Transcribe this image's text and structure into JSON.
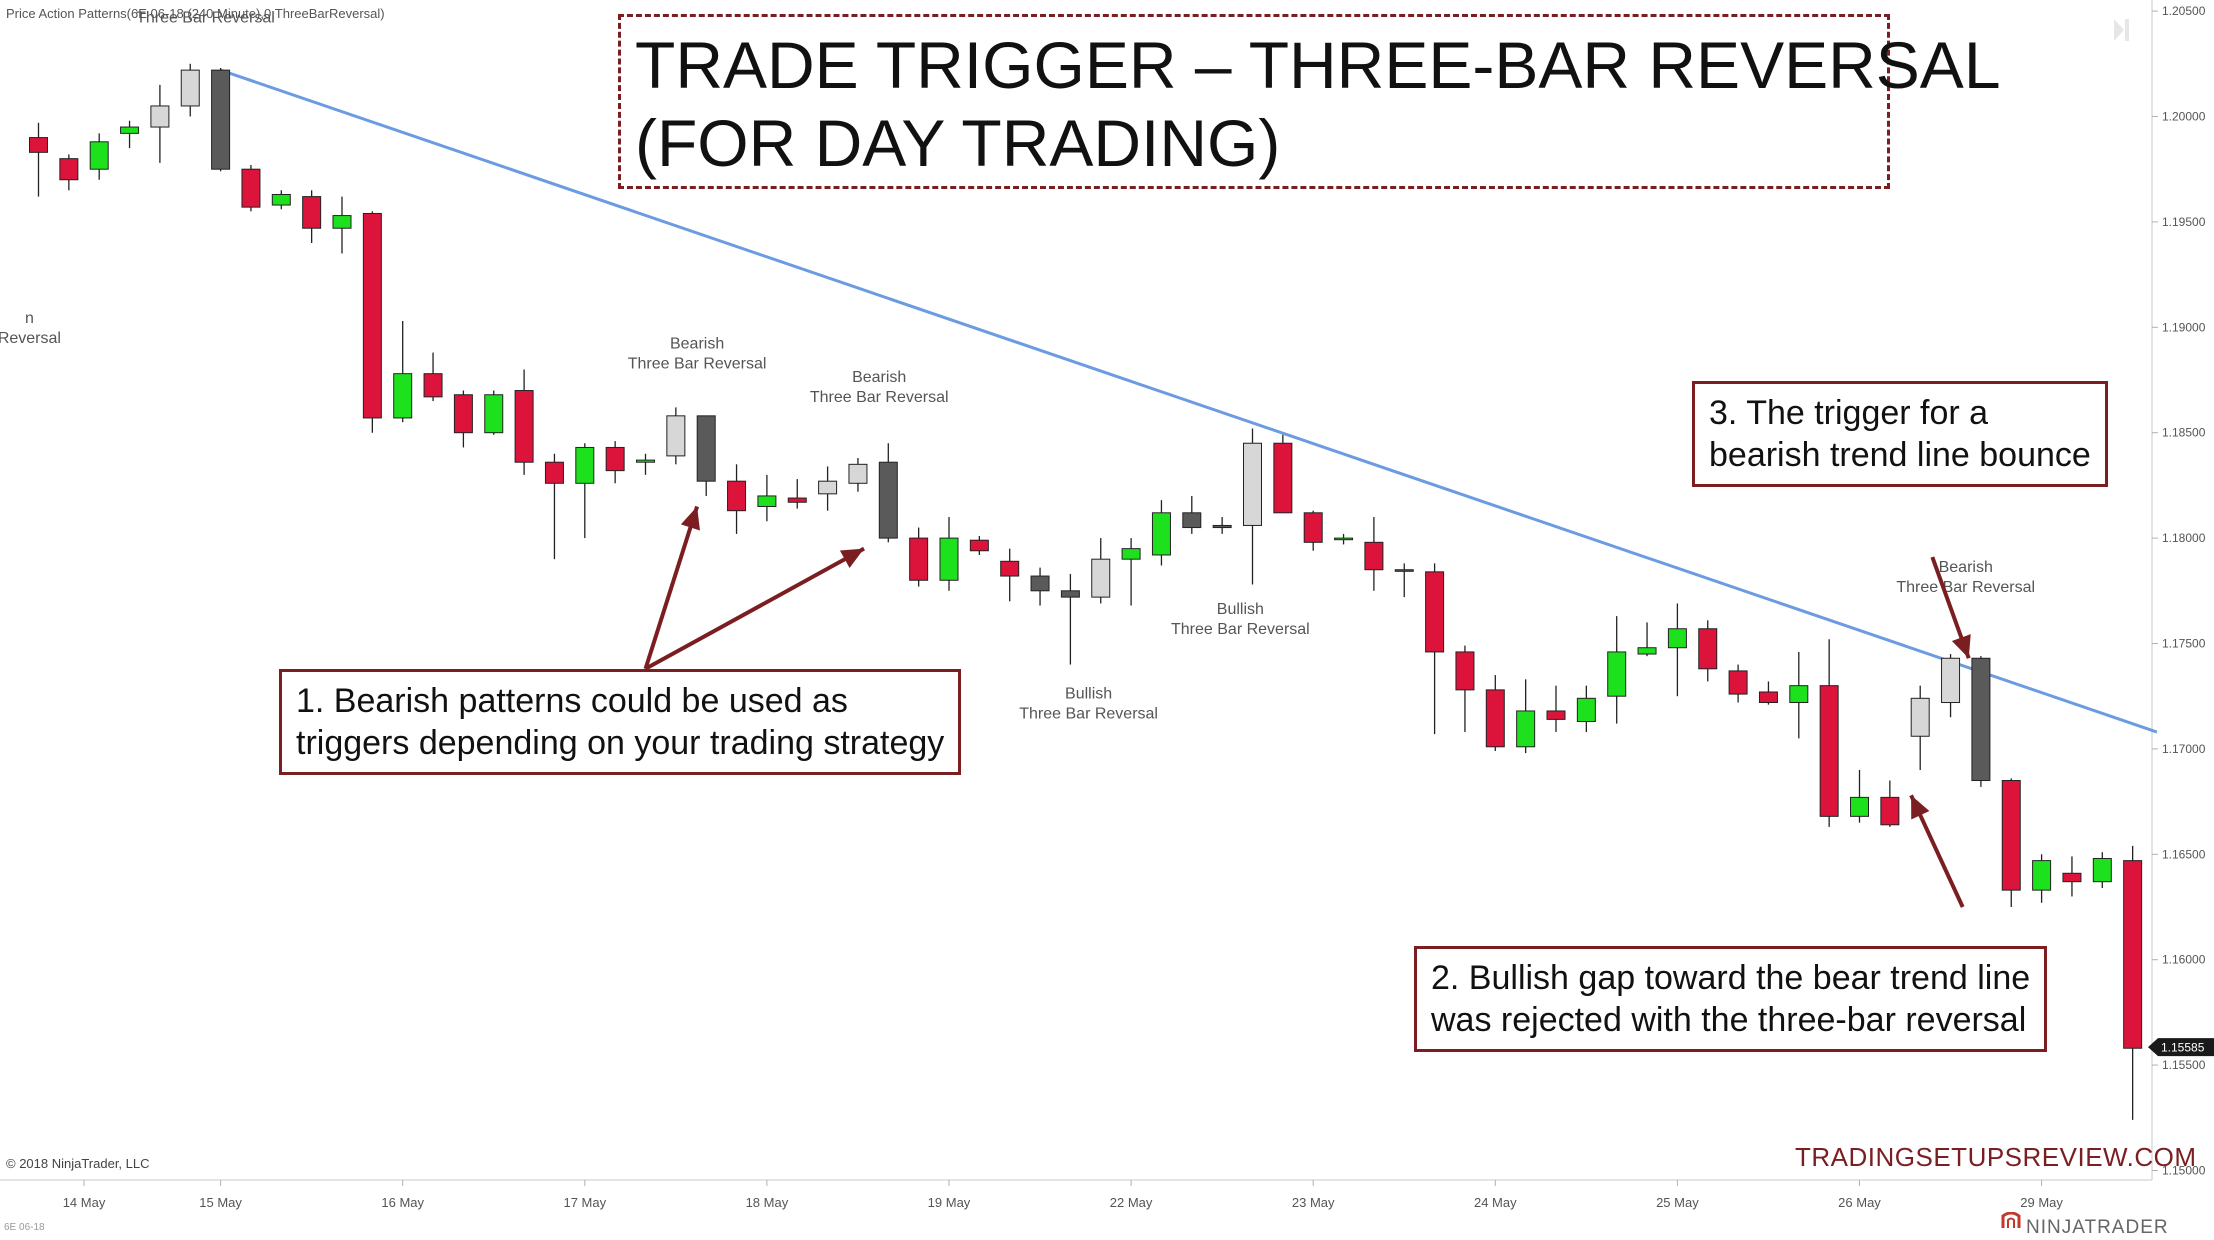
{
  "indicator_label": "Price Action Patterns(6E 06-18 (240 Minute),0,ThreeBarReversal)",
  "copyright": "© 2018 NinjaTrader, LLC",
  "instrument_tag": "6E 06-18",
  "title_lines": [
    "TRADE TRIGGER – THREE-BAR REVERSAL",
    "(FOR DAY TRADING)"
  ],
  "notes": [
    {
      "lines": [
        "1. Bearish patterns could be used as",
        "triggers depending on your trading strategy"
      ]
    },
    {
      "lines": [
        "2. Bullish gap toward the bear trend line",
        "was rejected with the three-bar reversal"
      ]
    },
    {
      "lines": [
        "3. The trigger for a",
        "bearish trend line bounce"
      ]
    }
  ],
  "brand": "TRADINGSETUPSREVIEW.COM",
  "vendor": "NINJATRADER",
  "colors": {
    "bull": "#1ee11e",
    "bear": "#dc143c",
    "pattern_bull": "#d7d7d7",
    "pattern_bear": "#5a5a5a",
    "trendline": "#6b9be0",
    "annotation": "#7b1e22"
  },
  "chart_data": {
    "type": "candlestick",
    "y_axis": {
      "min": 1.15,
      "max": 1.205,
      "ticks": [
        "1.20500",
        "1.20000",
        "1.19500",
        "1.19000",
        "1.18500",
        "1.18000",
        "1.17500",
        "1.17000",
        "1.16500",
        "1.16000",
        "1.15500",
        "1.15000"
      ],
      "last_price": "1.15585"
    },
    "x_axis": {
      "ticks": [
        {
          "label": "14 May",
          "bar": 1.5
        },
        {
          "label": "15 May",
          "bar": 6
        },
        {
          "label": "16 May",
          "bar": 12
        },
        {
          "label": "17 May",
          "bar": 18
        },
        {
          "label": "18 May",
          "bar": 24
        },
        {
          "label": "19 May",
          "bar": 30
        },
        {
          "label": "22 May",
          "bar": 36
        },
        {
          "label": "23 May",
          "bar": 42
        },
        {
          "label": "24 May",
          "bar": 48
        },
        {
          "label": "25 May",
          "bar": 54
        },
        {
          "label": "26 May",
          "bar": 60
        },
        {
          "label": "29 May",
          "bar": 66
        }
      ]
    },
    "candles": [
      {
        "o": 1.199,
        "h": 1.1997,
        "l": 1.1962,
        "c": 1.1983,
        "k": "bear"
      },
      {
        "o": 1.198,
        "h": 1.1982,
        "l": 1.1965,
        "c": 1.197,
        "k": "bear"
      },
      {
        "o": 1.1975,
        "h": 1.1992,
        "l": 1.197,
        "c": 1.1988,
        "k": "bull"
      },
      {
        "o": 1.1992,
        "h": 1.1998,
        "l": 1.1985,
        "c": 1.1995,
        "k": "bull"
      },
      {
        "o": 1.1995,
        "h": 1.2015,
        "l": 1.1978,
        "c": 1.2005,
        "k": "pattern_bull"
      },
      {
        "o": 1.2005,
        "h": 1.2025,
        "l": 1.2,
        "c": 1.2022,
        "k": "pattern_bull"
      },
      {
        "o": 1.2022,
        "h": 1.2023,
        "l": 1.1974,
        "c": 1.1975,
        "k": "pattern_bear"
      },
      {
        "o": 1.1975,
        "h": 1.1977,
        "l": 1.1955,
        "c": 1.1957,
        "k": "bear"
      },
      {
        "o": 1.1958,
        "h": 1.1965,
        "l": 1.1956,
        "c": 1.1963,
        "k": "bull"
      },
      {
        "o": 1.1962,
        "h": 1.1965,
        "l": 1.194,
        "c": 1.1947,
        "k": "bear"
      },
      {
        "o": 1.1947,
        "h": 1.1962,
        "l": 1.1935,
        "c": 1.1953,
        "k": "bull"
      },
      {
        "o": 1.1954,
        "h": 1.1955,
        "l": 1.185,
        "c": 1.1857,
        "k": "bear"
      },
      {
        "o": 1.1857,
        "h": 1.1903,
        "l": 1.1855,
        "c": 1.1878,
        "k": "bull"
      },
      {
        "o": 1.1878,
        "h": 1.1888,
        "l": 1.1865,
        "c": 1.1867,
        "k": "bear"
      },
      {
        "o": 1.1868,
        "h": 1.187,
        "l": 1.1843,
        "c": 1.185,
        "k": "bear"
      },
      {
        "o": 1.185,
        "h": 1.187,
        "l": 1.1849,
        "c": 1.1868,
        "k": "bull"
      },
      {
        "o": 1.187,
        "h": 1.188,
        "l": 1.183,
        "c": 1.1836,
        "k": "bear"
      },
      {
        "o": 1.1836,
        "h": 1.184,
        "l": 1.179,
        "c": 1.1826,
        "k": "bear"
      },
      {
        "o": 1.1826,
        "h": 1.1845,
        "l": 1.18,
        "c": 1.1843,
        "k": "bull"
      },
      {
        "o": 1.1843,
        "h": 1.1846,
        "l": 1.1826,
        "c": 1.1832,
        "k": "bear"
      },
      {
        "o": 1.1836,
        "h": 1.184,
        "l": 1.183,
        "c": 1.1837,
        "k": "bull"
      },
      {
        "o": 1.1839,
        "h": 1.1862,
        "l": 1.1835,
        "c": 1.1858,
        "k": "pattern_bull"
      },
      {
        "o": 1.1858,
        "h": 1.1858,
        "l": 1.182,
        "c": 1.1827,
        "k": "pattern_bear"
      },
      {
        "o": 1.1827,
        "h": 1.1835,
        "l": 1.1802,
        "c": 1.1813,
        "k": "bear"
      },
      {
        "o": 1.1815,
        "h": 1.183,
        "l": 1.1808,
        "c": 1.182,
        "k": "bull"
      },
      {
        "o": 1.1819,
        "h": 1.1828,
        "l": 1.1814,
        "c": 1.1817,
        "k": "bear"
      },
      {
        "o": 1.1821,
        "h": 1.1834,
        "l": 1.1813,
        "c": 1.1827,
        "k": "pattern_bull"
      },
      {
        "o": 1.1826,
        "h": 1.1838,
        "l": 1.1822,
        "c": 1.1835,
        "k": "pattern_bull"
      },
      {
        "o": 1.1836,
        "h": 1.1845,
        "l": 1.1798,
        "c": 1.18,
        "k": "pattern_bear"
      },
      {
        "o": 1.18,
        "h": 1.1805,
        "l": 1.1777,
        "c": 1.178,
        "k": "bear"
      },
      {
        "o": 1.178,
        "h": 1.181,
        "l": 1.1775,
        "c": 1.18,
        "k": "bull"
      },
      {
        "o": 1.1799,
        "h": 1.1801,
        "l": 1.1792,
        "c": 1.1794,
        "k": "bear"
      },
      {
        "o": 1.1789,
        "h": 1.1795,
        "l": 1.177,
        "c": 1.1782,
        "k": "bear"
      },
      {
        "o": 1.1782,
        "h": 1.1786,
        "l": 1.1768,
        "c": 1.1775,
        "k": "pattern_bear"
      },
      {
        "o": 1.1775,
        "h": 1.1783,
        "l": 1.174,
        "c": 1.1772,
        "k": "pattern_bear"
      },
      {
        "o": 1.1772,
        "h": 1.18,
        "l": 1.1769,
        "c": 1.179,
        "k": "pattern_bull"
      },
      {
        "o": 1.179,
        "h": 1.18,
        "l": 1.1768,
        "c": 1.1795,
        "k": "bull"
      },
      {
        "o": 1.1792,
        "h": 1.1818,
        "l": 1.1787,
        "c": 1.1812,
        "k": "bull"
      },
      {
        "o": 1.1812,
        "h": 1.182,
        "l": 1.1802,
        "c": 1.1805,
        "k": "pattern_bear"
      },
      {
        "o": 1.1805,
        "h": 1.181,
        "l": 1.1802,
        "c": 1.1806,
        "k": "pattern_bear"
      },
      {
        "o": 1.1806,
        "h": 1.1852,
        "l": 1.1778,
        "c": 1.1845,
        "k": "pattern_bull"
      },
      {
        "o": 1.1845,
        "h": 1.1849,
        "l": 1.1812,
        "c": 1.1812,
        "k": "bear"
      },
      {
        "o": 1.1812,
        "h": 1.1813,
        "l": 1.1794,
        "c": 1.1798,
        "k": "bear"
      },
      {
        "o": 1.18,
        "h": 1.1802,
        "l": 1.1797,
        "c": 1.18,
        "k": "bull"
      },
      {
        "o": 1.1798,
        "h": 1.181,
        "l": 1.1775,
        "c": 1.1785,
        "k": "bear"
      },
      {
        "o": 1.1785,
        "h": 1.1788,
        "l": 1.1772,
        "c": 1.1785,
        "k": "pattern_bear"
      },
      {
        "o": 1.1784,
        "h": 1.1788,
        "l": 1.1707,
        "c": 1.1746,
        "k": "bear"
      },
      {
        "o": 1.1746,
        "h": 1.1749,
        "l": 1.1708,
        "c": 1.1728,
        "k": "bear"
      },
      {
        "o": 1.1728,
        "h": 1.1735,
        "l": 1.1699,
        "c": 1.1701,
        "k": "bear"
      },
      {
        "o": 1.1701,
        "h": 1.1733,
        "l": 1.1698,
        "c": 1.1718,
        "k": "bull"
      },
      {
        "o": 1.1718,
        "h": 1.173,
        "l": 1.1708,
        "c": 1.1714,
        "k": "bear"
      },
      {
        "o": 1.1713,
        "h": 1.173,
        "l": 1.1708,
        "c": 1.1724,
        "k": "bull"
      },
      {
        "o": 1.1725,
        "h": 1.1763,
        "l": 1.1712,
        "c": 1.1746,
        "k": "bull"
      },
      {
        "o": 1.1745,
        "h": 1.176,
        "l": 1.1744,
        "c": 1.1748,
        "k": "bull"
      },
      {
        "o": 1.1748,
        "h": 1.1769,
        "l": 1.1725,
        "c": 1.1757,
        "k": "bull"
      },
      {
        "o": 1.1757,
        "h": 1.1761,
        "l": 1.1732,
        "c": 1.1738,
        "k": "bear"
      },
      {
        "o": 1.1737,
        "h": 1.174,
        "l": 1.1722,
        "c": 1.1726,
        "k": "bear"
      },
      {
        "o": 1.1727,
        "h": 1.1732,
        "l": 1.1721,
        "c": 1.1722,
        "k": "bear"
      },
      {
        "o": 1.1722,
        "h": 1.1746,
        "l": 1.1705,
        "c": 1.173,
        "k": "bull"
      },
      {
        "o": 1.173,
        "h": 1.1752,
        "l": 1.1663,
        "c": 1.1668,
        "k": "bear"
      },
      {
        "o": 1.1668,
        "h": 1.169,
        "l": 1.1665,
        "c": 1.1677,
        "k": "bull"
      },
      {
        "o": 1.1677,
        "h": 1.1685,
        "l": 1.1663,
        "c": 1.1664,
        "k": "bear"
      },
      {
        "o": 1.1706,
        "h": 1.173,
        "l": 1.169,
        "c": 1.1724,
        "k": "pattern_bull"
      },
      {
        "o": 1.1722,
        "h": 1.1745,
        "l": 1.1715,
        "c": 1.1743,
        "k": "pattern_bull"
      },
      {
        "o": 1.1743,
        "h": 1.1744,
        "l": 1.1682,
        "c": 1.1685,
        "k": "pattern_bear"
      },
      {
        "o": 1.1685,
        "h": 1.1686,
        "l": 1.1625,
        "c": 1.1633,
        "k": "bear"
      },
      {
        "o": 1.1633,
        "h": 1.165,
        "l": 1.1627,
        "c": 1.1647,
        "k": "bull"
      },
      {
        "o": 1.1641,
        "h": 1.1649,
        "l": 1.163,
        "c": 1.1637,
        "k": "bear"
      },
      {
        "o": 1.1637,
        "h": 1.1651,
        "l": 1.1634,
        "c": 1.1648,
        "k": "bull"
      },
      {
        "o": 1.1647,
        "h": 1.1654,
        "l": 1.1524,
        "c": 1.1558,
        "k": "bear"
      }
    ],
    "pattern_labels": [
      {
        "lines": [
          "",
          "Three Bar Reversal"
        ],
        "bar": 5.5,
        "price": 1.2054
      },
      {
        "lines": [
          "n",
          "Reversal"
        ],
        "bar": -0.3,
        "price": 1.1902
      },
      {
        "lines": [
          "Bearish",
          "Three Bar Reversal"
        ],
        "bar": 21.7,
        "price": 1.189
      },
      {
        "lines": [
          "Bearish",
          "Three Bar Reversal"
        ],
        "bar": 27.7,
        "price": 1.1874
      },
      {
        "lines": [
          "Bullish",
          "Three Bar Reversal"
        ],
        "bar": 39.6,
        "price": 1.1764
      },
      {
        "lines": [
          "Bullish",
          "Three Bar Reversal"
        ],
        "bar": 34.6,
        "price": 1.1724
      },
      {
        "lines": [
          "Bearish",
          "Three Bar Reversal"
        ],
        "bar": 63.5,
        "price": 1.1784
      }
    ],
    "trendline": {
      "bar1": 6,
      "price1": 1.2022,
      "bar2": 69.8,
      "price2": 1.1708
    },
    "annotation_arrows": [
      {
        "from": [
          20,
          1.1738
        ],
        "to": [
          21.7,
          1.1815
        ]
      },
      {
        "from": [
          20,
          1.1738
        ],
        "to": [
          27.2,
          1.1795
        ]
      },
      {
        "from": [
          63.4,
          1.1625
        ],
        "to": [
          61.7,
          1.1678
        ]
      },
      {
        "from": [
          62.4,
          1.1791
        ],
        "to": [
          63.6,
          1.1743
        ]
      }
    ]
  }
}
